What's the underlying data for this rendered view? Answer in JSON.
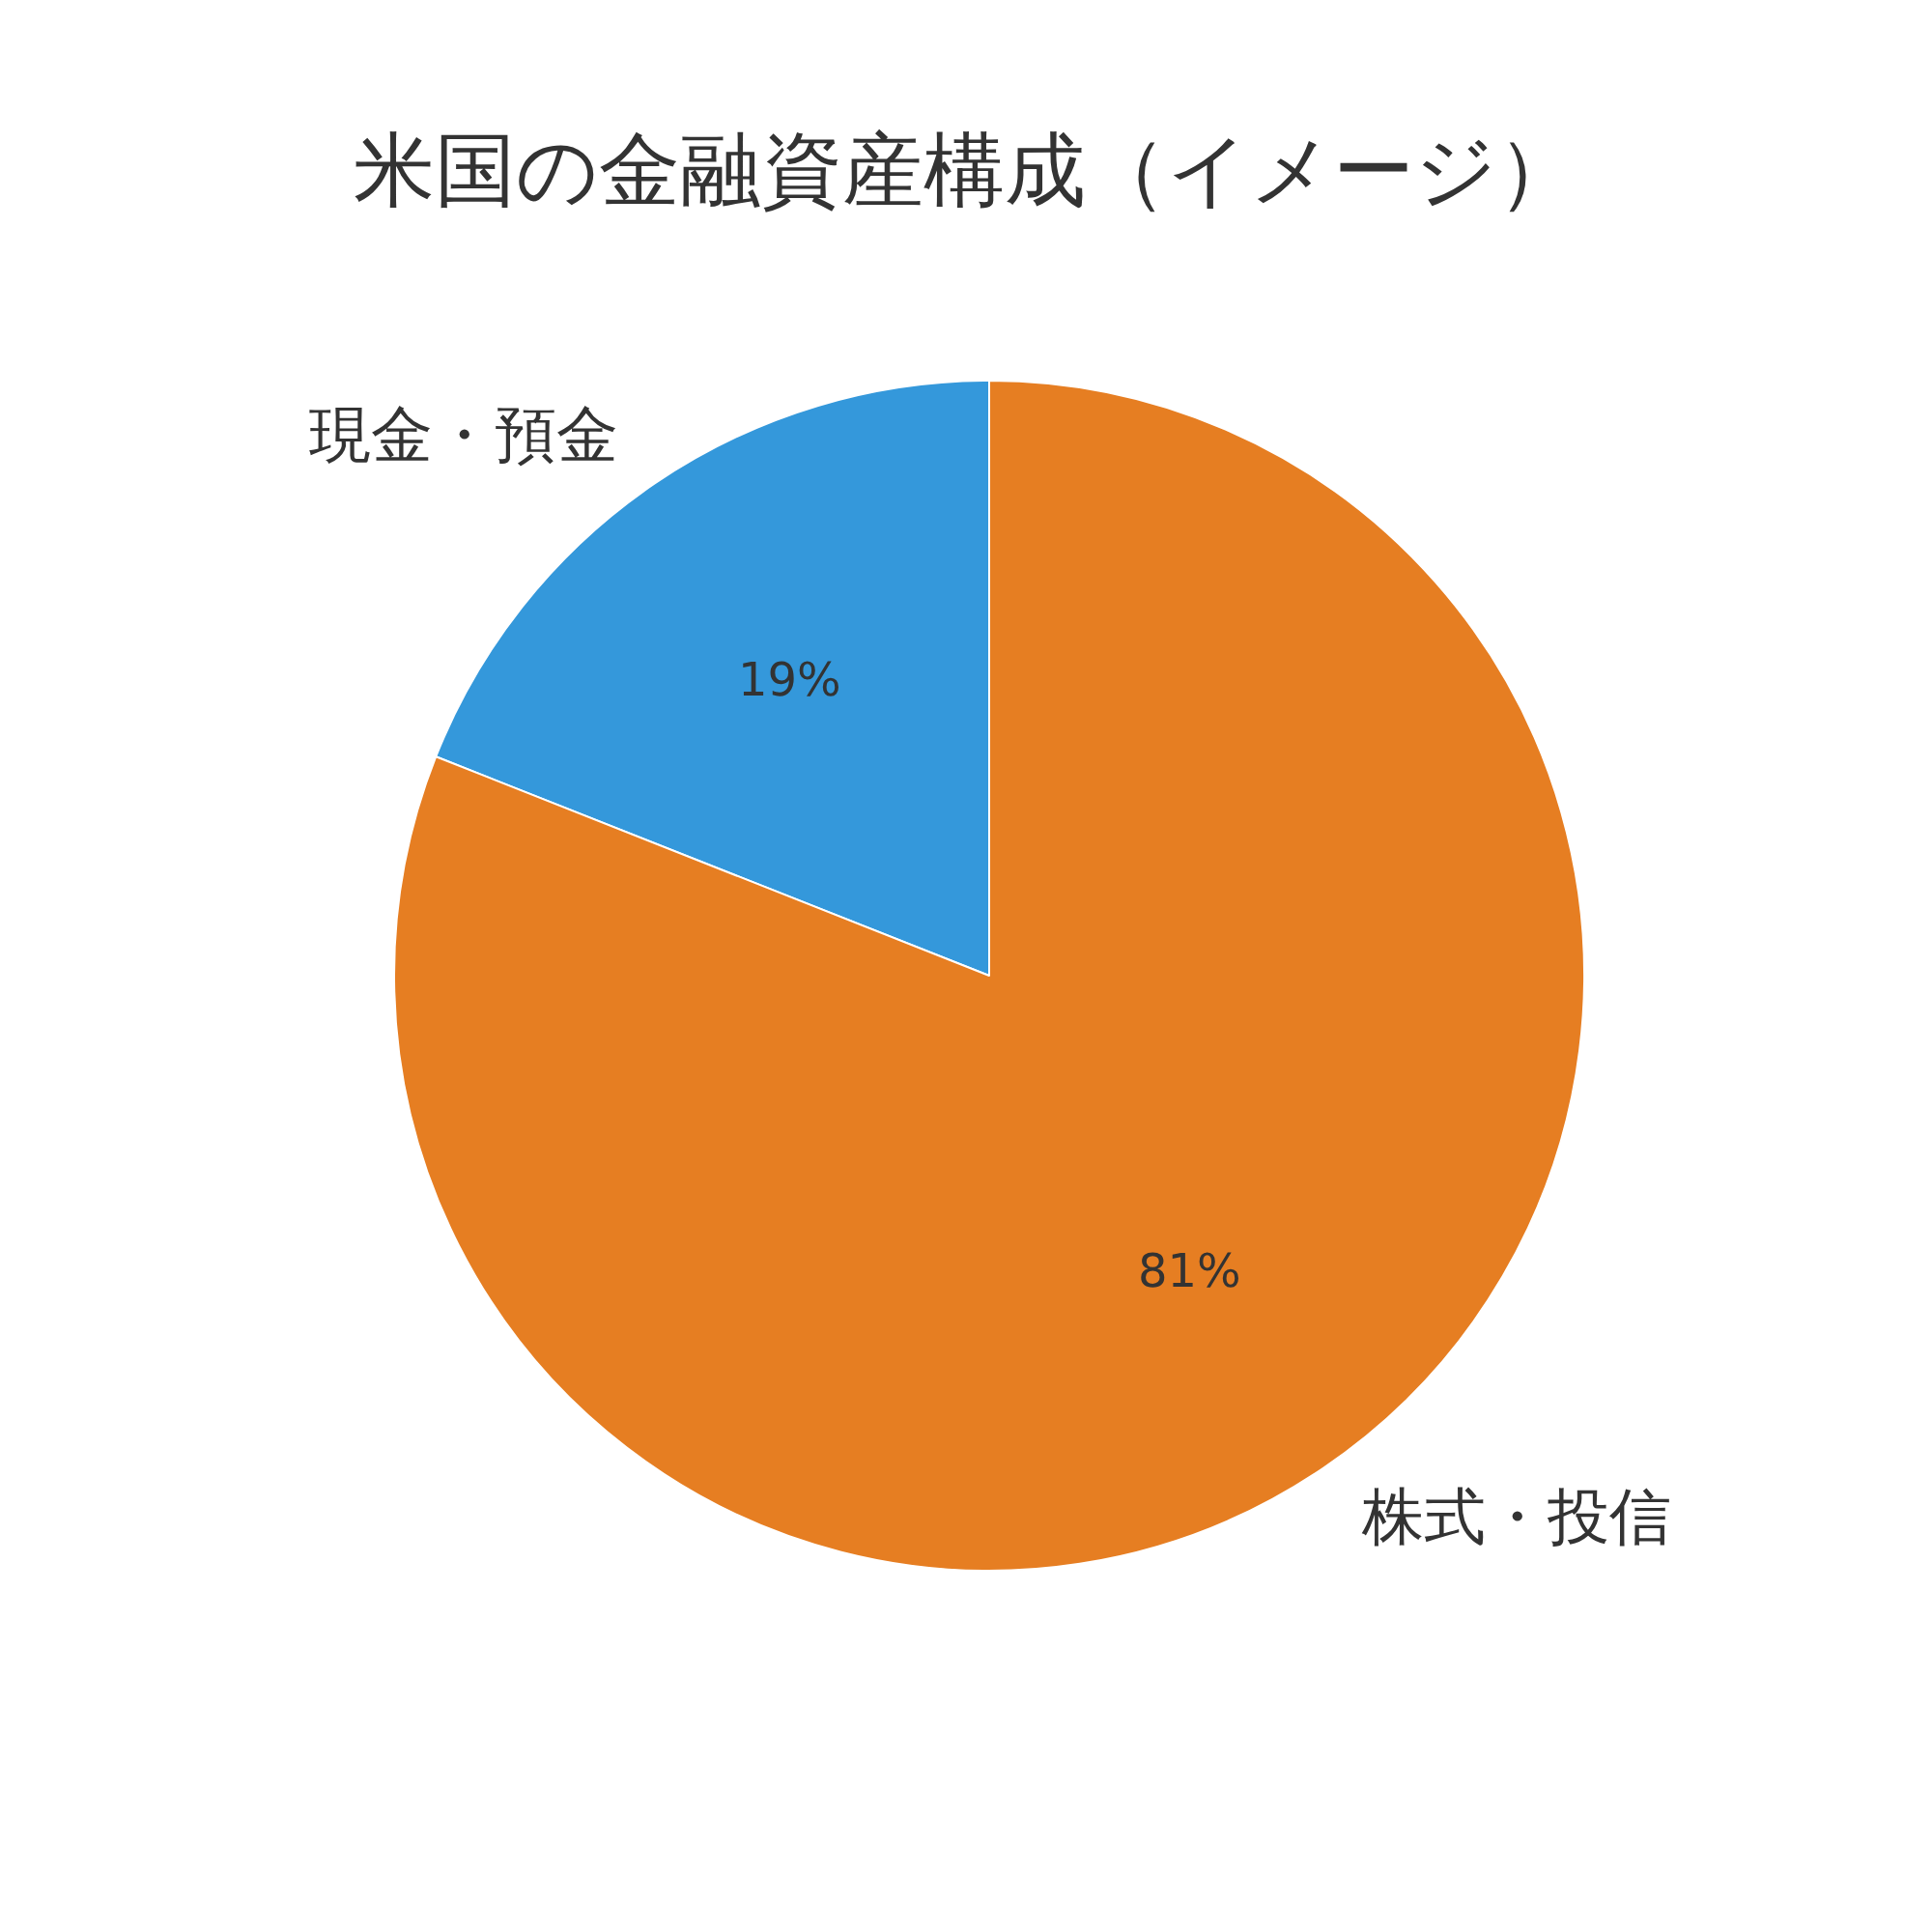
{
  "chart_data": {
    "type": "pie",
    "title": "米国の金融資産構成（イメージ）",
    "categories": [
      "現金・預金",
      "株式・投信"
    ],
    "values": [
      19,
      81
    ],
    "colors": [
      "#3498db",
      "#e67e22"
    ],
    "value_labels": [
      "19%",
      "81%"
    ]
  }
}
